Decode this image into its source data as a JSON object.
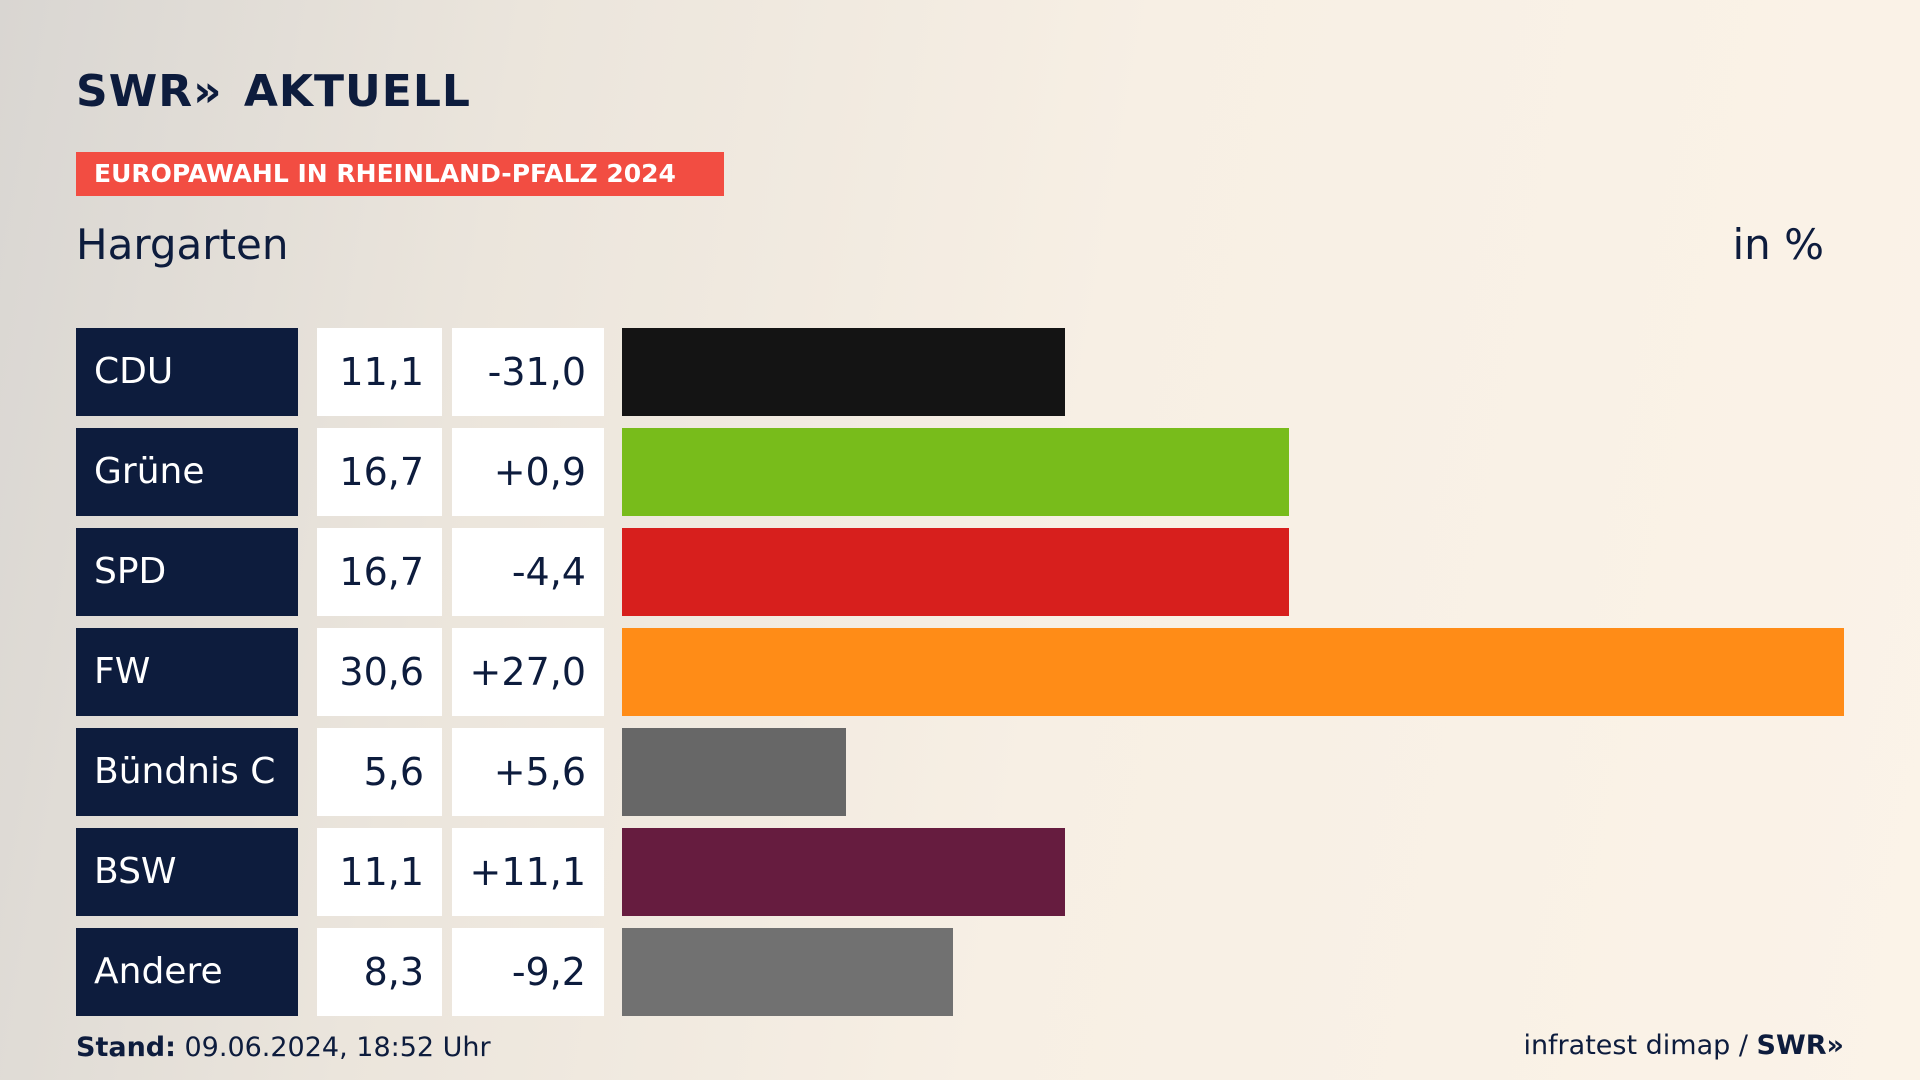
{
  "brand": {
    "logo_text": "SWR",
    "logo_chevron": "»",
    "logo_suffix": "AKTUELL"
  },
  "banner": "EUROPAWAHL IN RHEINLAND-PFALZ 2024",
  "location": "Hargarten",
  "unit": "in %",
  "footer": {
    "stand_label": "Stand:",
    "stand_value": " 09.06.2024, 18:52 Uhr",
    "source": "infratest dimap / ",
    "source_logo": "SWR»"
  },
  "chart_data": {
    "type": "bar",
    "orientation": "horizontal",
    "categories": [
      "CDU",
      "Grüne",
      "SPD",
      "FW",
      "Bündnis C",
      "BSW",
      "Andere"
    ],
    "values": [
      11.1,
      16.7,
      16.7,
      30.6,
      5.6,
      11.1,
      8.3
    ],
    "value_labels": [
      "11,1",
      "16,7",
      "16,7",
      "30,6",
      "5,6",
      "11,1",
      "8,3"
    ],
    "changes": [
      "-31,0",
      "+0,9",
      "-4,4",
      "+27,0",
      "+5,6",
      "+11,1",
      "-9,2"
    ],
    "colors": [
      "#141414",
      "#78bc1b",
      "#d71f1d",
      "#ff8c17",
      "#676767",
      "#661c3f",
      "#717171"
    ],
    "xlim": [
      0,
      30.6
    ]
  }
}
